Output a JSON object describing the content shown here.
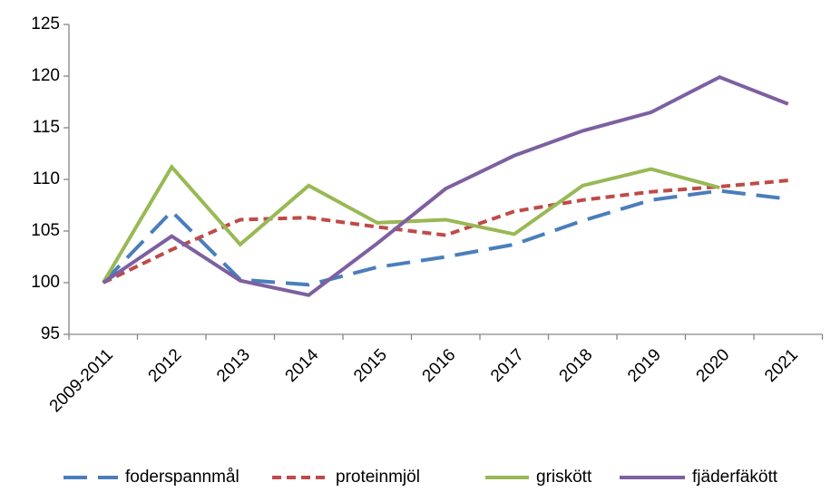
{
  "chart_data": {
    "type": "line",
    "categories": [
      "2009-2011",
      "2012",
      "2013",
      "2014",
      "2015",
      "2016",
      "2017",
      "2018",
      "2019",
      "2020",
      "2021"
    ],
    "series": [
      {
        "name": "foderspannmål",
        "color": "#4a7ebb",
        "dash": "long",
        "values": [
          100,
          106.9,
          100.3,
          99.8,
          101.5,
          102.5,
          103.7,
          106,
          108,
          108.9,
          108.1
        ]
      },
      {
        "name": "proteinmjöl",
        "color": "#be4b48",
        "dash": "short",
        "values": [
          100,
          103.2,
          106.1,
          106.3,
          105.4,
          104.6,
          106.9,
          108,
          108.8,
          109.3,
          109.9
        ]
      },
      {
        "name": "griskött",
        "color": "#98b954",
        "dash": "solid",
        "values": [
          100,
          111.2,
          103.7,
          109.4,
          105.8,
          106.1,
          104.7,
          109.4,
          111,
          109.2,
          null
        ]
      },
      {
        "name": "fjäderfäkött",
        "color": "#7d60a0",
        "dash": "solid",
        "values": [
          100,
          104.5,
          100.2,
          98.8,
          103.8,
          109.1,
          112.3,
          114.7,
          116.5,
          119.9,
          117.3
        ]
      }
    ],
    "ylim": [
      95,
      125
    ],
    "yticks": [
      95,
      100,
      105,
      110,
      115,
      120,
      125
    ],
    "grid": false,
    "legend": "bottom"
  }
}
